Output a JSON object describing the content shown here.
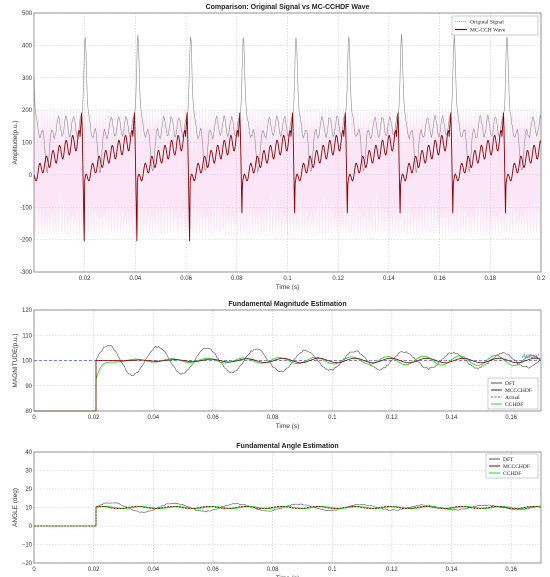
{
  "chart_data": [
    {
      "type": "line",
      "title": "Comparison: Original Signal vs MC-CCHDF Wave",
      "xlabel": "Time (s)",
      "ylabel": "Amplitude(p.u.)",
      "xlim": [
        0,
        0.2
      ],
      "ylim": [
        -300,
        500
      ],
      "xticks": [
        0.02,
        0.04,
        0.06,
        0.08,
        0.1,
        0.12,
        0.14,
        0.16,
        0.18,
        0.2
      ],
      "xtick_labels": [
        "0.02",
        "0.04",
        "0.06",
        "0.08",
        "0.1",
        "0.12",
        "0.14",
        "0.16",
        "0.18",
        "0.2"
      ],
      "yticks": [
        -300,
        -200,
        -100,
        0,
        100,
        200,
        300,
        400,
        500
      ],
      "ytick_labels": [
        "-300",
        "-200",
        "-100",
        "0",
        "100",
        "200",
        "300",
        "400",
        "500"
      ],
      "grid": true,
      "legend_position": "top-right",
      "period": 0.0208,
      "series": [
        {
          "name": "Original Signal",
          "color": "#8c8c8c",
          "style": "dotted",
          "peak": 460,
          "base": 150,
          "min": 40
        },
        {
          "name": "MC-CCH Wave",
          "color": "#8b0000",
          "style": "solid",
          "peak": 200,
          "trough": -205,
          "ripple_start": 10,
          "ripple_end": 110
        },
        {
          "name": "",
          "color": "#f2b8e6",
          "style": "band",
          "note_values": [
            -220,
            220
          ]
        }
      ]
    },
    {
      "type": "line",
      "title": "Fundamental Magnitude Estimation",
      "xlabel": "Time (s)",
      "ylabel": "MAGNITUDE(p.u.)",
      "xlim": [
        0,
        0.17
      ],
      "ylim": [
        80,
        120
      ],
      "xticks": [
        0,
        0.02,
        0.04,
        0.06,
        0.08,
        0.1,
        0.12,
        0.14,
        0.16
      ],
      "xtick_labels": [
        "0",
        "0.02",
        "0.04",
        "0.06",
        "0.08",
        "0.1",
        "0.12",
        "0.14",
        "0.16"
      ],
      "yticks": [
        80,
        90,
        100,
        110,
        120
      ],
      "ytick_labels": [
        "80",
        "90",
        "100",
        "110",
        "120"
      ],
      "grid": true,
      "legend_position": "bottom-right",
      "annotation": "Actual",
      "step_time": 0.0208,
      "series": [
        {
          "name": "DFT",
          "color": "#555555",
          "style": "solid",
          "final": 100,
          "initial_ripple": 5
        },
        {
          "name": "MCCCHDF",
          "color": "#8b0000",
          "style": "solid",
          "final": 100
        },
        {
          "name": "Actual",
          "color": "#4a5fd8",
          "style": "dashed",
          "value": 100
        },
        {
          "name": "CCHDF",
          "color": "#22dd22",
          "style": "solid",
          "final": 100
        }
      ]
    },
    {
      "type": "line",
      "title": "Fundamental Angle Estimation",
      "xlabel": "Time (s)",
      "ylabel": "ANGLE (deg)",
      "xlim": [
        0,
        0.17
      ],
      "ylim": [
        -20,
        40
      ],
      "xticks": [
        0,
        0.02,
        0.04,
        0.06,
        0.08,
        0.1,
        0.12,
        0.14,
        0.16
      ],
      "xtick_labels": [
        "0",
        "0.02",
        "0.04",
        "0.06",
        "0.08",
        "0.1",
        "0.12",
        "0.14",
        "0.16"
      ],
      "yticks": [
        -20,
        -10,
        0,
        10,
        20,
        30,
        40
      ],
      "ytick_labels": [
        "−20",
        "−10",
        "0",
        "10",
        "20",
        "30",
        "40"
      ],
      "grid": true,
      "legend_position": "top-right",
      "step_time": 0.0208,
      "series": [
        {
          "name": "DFT",
          "color": "#555555",
          "style": "solid",
          "initial": 0,
          "final": 10
        },
        {
          "name": "MCCCHDF",
          "color": "#8b0000",
          "style": "solid",
          "initial": 0,
          "final": 10
        },
        {
          "name": "CCHDF",
          "color": "#22dd22",
          "style": "solid",
          "initial": 0,
          "final": 10
        }
      ]
    }
  ]
}
